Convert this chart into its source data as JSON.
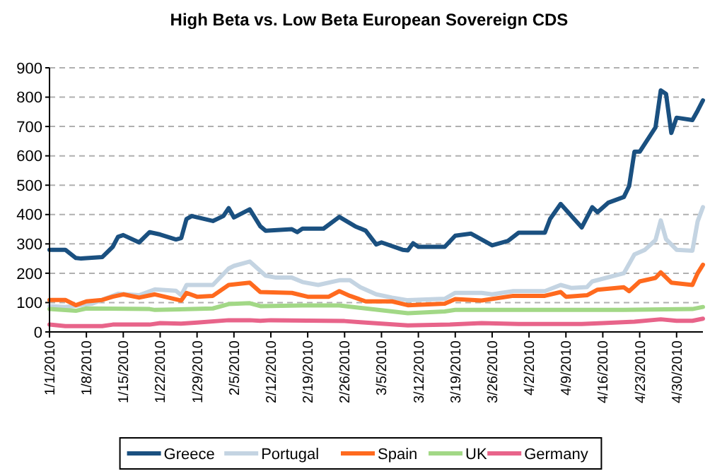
{
  "chart_data": {
    "type": "line",
    "title": "High Beta vs. Low Beta European Sovereign CDS",
    "xlim": [
      "2010-01-01",
      "2010-05-05"
    ],
    "xticks": [
      {
        "value": "2010-01-01",
        "label": "1/1/2010"
      },
      {
        "value": "2010-01-08",
        "label": "1/8/2010"
      },
      {
        "value": "2010-01-15",
        "label": "1/15/2010"
      },
      {
        "value": "2010-01-22",
        "label": "1/22/2010"
      },
      {
        "value": "2010-01-29",
        "label": "1/29/2010"
      },
      {
        "value": "2010-02-05",
        "label": "2/5/2010"
      },
      {
        "value": "2010-02-12",
        "label": "2/12/2010"
      },
      {
        "value": "2010-02-19",
        "label": "2/19/2010"
      },
      {
        "value": "2010-02-26",
        "label": "2/26/2010"
      },
      {
        "value": "2010-03-05",
        "label": "3/5/2010"
      },
      {
        "value": "2010-03-12",
        "label": "3/12/2010"
      },
      {
        "value": "2010-03-19",
        "label": "3/19/2010"
      },
      {
        "value": "2010-03-26",
        "label": "3/26/2010"
      },
      {
        "value": "2010-04-02",
        "label": "4/2/2010"
      },
      {
        "value": "2010-04-09",
        "label": "4/9/2010"
      },
      {
        "value": "2010-04-16",
        "label": "4/16/2010"
      },
      {
        "value": "2010-04-23",
        "label": "4/23/2010"
      },
      {
        "value": "2010-04-30",
        "label": "4/30/2010"
      }
    ],
    "ylim": [
      0,
      900
    ],
    "yticks": [
      0,
      100,
      200,
      300,
      400,
      500,
      600,
      700,
      800,
      900
    ],
    "grid": "y",
    "legend": "bottom",
    "series": [
      {
        "name": "Greece",
        "color": "#1a5080",
        "x": [
          "2010-01-01",
          "2010-01-04",
          "2010-01-06",
          "2010-01-07",
          "2010-01-11",
          "2010-01-13",
          "2010-01-14",
          "2010-01-15",
          "2010-01-18",
          "2010-01-20",
          "2010-01-22",
          "2010-01-25",
          "2010-01-26",
          "2010-01-27",
          "2010-01-28",
          "2010-02-01",
          "2010-02-03",
          "2010-02-04",
          "2010-02-05",
          "2010-02-08",
          "2010-02-10",
          "2010-02-11",
          "2010-02-16",
          "2010-02-17",
          "2010-02-18",
          "2010-02-22",
          "2010-02-25",
          "2010-02-28",
          "2010-03-02",
          "2010-03-04",
          "2010-03-05",
          "2010-03-09",
          "2010-03-10",
          "2010-03-11",
          "2010-03-12",
          "2010-03-17",
          "2010-03-19",
          "2010-03-22",
          "2010-03-24",
          "2010-03-26",
          "2010-03-29",
          "2010-03-31",
          "2010-04-05",
          "2010-04-06",
          "2010-04-08",
          "2010-04-12",
          "2010-04-14",
          "2010-04-15",
          "2010-04-17",
          "2010-04-20",
          "2010-04-21",
          "2010-04-22",
          "2010-04-23",
          "2010-04-26",
          "2010-04-27",
          "2010-04-28",
          "2010-04-29",
          "2010-04-30",
          "2010-05-03",
          "2010-05-04",
          "2010-05-05"
        ],
        "values": [
          280,
          280,
          252,
          250,
          255,
          290,
          324,
          330,
          305,
          340,
          332,
          315,
          320,
          385,
          395,
          378,
          395,
          422,
          390,
          418,
          360,
          345,
          350,
          340,
          352,
          352,
          392,
          360,
          345,
          298,
          305,
          280,
          278,
          302,
          290,
          290,
          328,
          335,
          315,
          295,
          310,
          338,
          338,
          385,
          436,
          356,
          425,
          408,
          440,
          460,
          497,
          614,
          614,
          697,
          823,
          811,
          678,
          730,
          722,
          754,
          789
        ]
      },
      {
        "name": "Portugal",
        "color": "#c4d4e2",
        "x": [
          "2010-01-01",
          "2010-01-04",
          "2010-01-09",
          "2010-01-14",
          "2010-01-18",
          "2010-01-21",
          "2010-01-25",
          "2010-01-26",
          "2010-01-27",
          "2010-02-01",
          "2010-02-04",
          "2010-02-05",
          "2010-02-08",
          "2010-02-11",
          "2010-02-13",
          "2010-02-16",
          "2010-02-18",
          "2010-02-21",
          "2010-02-25",
          "2010-02-27",
          "2010-03-01",
          "2010-03-04",
          "2010-03-07",
          "2010-03-10",
          "2010-03-17",
          "2010-03-19",
          "2010-03-24",
          "2010-03-26",
          "2010-03-30",
          "2010-04-05",
          "2010-04-08",
          "2010-04-10",
          "2010-04-13",
          "2010-04-14",
          "2010-04-20",
          "2010-04-22",
          "2010-04-24",
          "2010-04-26",
          "2010-04-27",
          "2010-04-28",
          "2010-04-30",
          "2010-05-03",
          "2010-05-04",
          "2010-05-05"
        ],
        "values": [
          88,
          85,
          96,
          130,
          125,
          145,
          140,
          125,
          160,
          160,
          216,
          225,
          240,
          192,
          185,
          185,
          170,
          160,
          176,
          176,
          152,
          128,
          117,
          108,
          113,
          133,
          133,
          128,
          139,
          139,
          160,
          150,
          153,
          172,
          200,
          264,
          280,
          313,
          380,
          316,
          280,
          277,
          377,
          425
        ]
      },
      {
        "name": "Spain",
        "color": "#ff6a1e",
        "x": [
          "2010-01-01",
          "2010-01-04",
          "2010-01-06",
          "2010-01-08",
          "2010-01-11",
          "2010-01-13",
          "2010-01-15",
          "2010-01-18",
          "2010-01-21",
          "2010-01-26",
          "2010-01-27",
          "2010-01-29",
          "2010-02-01",
          "2010-02-04",
          "2010-02-08",
          "2010-02-10",
          "2010-02-16",
          "2010-02-19",
          "2010-02-23",
          "2010-02-25",
          "2010-02-27",
          "2010-03-02",
          "2010-03-07",
          "2010-03-10",
          "2010-03-17",
          "2010-03-19",
          "2010-03-24",
          "2010-03-30",
          "2010-04-05",
          "2010-04-08",
          "2010-04-09",
          "2010-04-13",
          "2010-04-15",
          "2010-04-20",
          "2010-04-21",
          "2010-04-23",
          "2010-04-26",
          "2010-04-27",
          "2010-04-29",
          "2010-05-03",
          "2010-05-04",
          "2010-05-05"
        ],
        "values": [
          109,
          109,
          91,
          104,
          109,
          120,
          128,
          117,
          128,
          107,
          133,
          120,
          123,
          160,
          168,
          136,
          133,
          120,
          120,
          139,
          123,
          104,
          104,
          91,
          96,
          112,
          107,
          123,
          123,
          136,
          120,
          125,
          144,
          152,
          139,
          172,
          184,
          203,
          168,
          160,
          200,
          229
        ]
      },
      {
        "name": "UK",
        "color": "#a2d886",
        "x": [
          "2010-01-01",
          "2010-01-06",
          "2010-01-08",
          "2010-01-20",
          "2010-01-21",
          "2010-02-01",
          "2010-02-04",
          "2010-02-08",
          "2010-02-10",
          "2010-02-18",
          "2010-02-25",
          "2010-03-02",
          "2010-03-10",
          "2010-03-17",
          "2010-03-19",
          "2010-04-05",
          "2010-04-20",
          "2010-05-03",
          "2010-05-05"
        ],
        "values": [
          78,
          72,
          80,
          78,
          75,
          80,
          95,
          98,
          88,
          90,
          90,
          80,
          64,
          70,
          75,
          75,
          75,
          78,
          85
        ]
      },
      {
        "name": "Germany",
        "color": "#e8648a",
        "x": [
          "2010-01-01",
          "2010-01-04",
          "2010-01-11",
          "2010-01-13",
          "2010-01-20",
          "2010-01-22",
          "2010-01-26",
          "2010-01-29",
          "2010-02-04",
          "2010-02-08",
          "2010-02-10",
          "2010-02-12",
          "2010-02-26",
          "2010-03-01",
          "2010-03-10",
          "2010-03-18",
          "2010-03-24",
          "2010-03-31",
          "2010-04-12",
          "2010-04-16",
          "2010-04-22",
          "2010-04-27",
          "2010-04-30",
          "2010-05-03",
          "2010-05-05"
        ],
        "values": [
          25,
          20,
          20,
          25,
          25,
          30,
          28,
          32,
          40,
          40,
          38,
          40,
          37,
          33,
          22,
          25,
          30,
          27,
          27,
          30,
          35,
          43,
          38,
          38,
          45
        ]
      }
    ]
  }
}
